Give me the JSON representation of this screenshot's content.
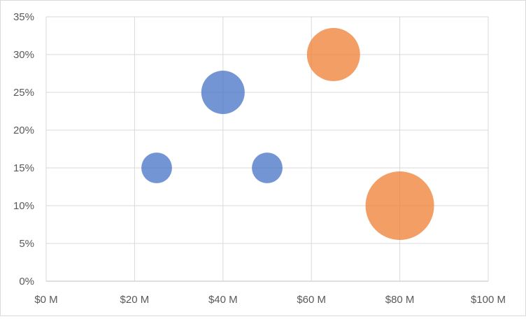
{
  "chart_data": {
    "type": "bubble",
    "title": "",
    "xlabel": "",
    "ylabel": "",
    "xlim": [
      0,
      100
    ],
    "ylim": [
      0,
      35
    ],
    "x_ticks": [
      0,
      20,
      40,
      60,
      80,
      100
    ],
    "x_tick_labels": [
      "$0 M",
      "$20 M",
      "$40 M",
      "$60 M",
      "$80 M",
      "$100 M"
    ],
    "y_ticks": [
      0,
      5,
      10,
      15,
      20,
      25,
      30,
      35
    ],
    "y_tick_labels": [
      "0%",
      "5%",
      "10%",
      "15%",
      "20%",
      "25%",
      "30%",
      "35%"
    ],
    "grid": "both",
    "legend": "none",
    "series": [
      {
        "color": "#4472c4",
        "points": [
          {
            "x": 25,
            "y": 15,
            "size": 1
          },
          {
            "x": 40,
            "y": 25,
            "size": 2
          },
          {
            "x": 50,
            "y": 15,
            "size": 1
          }
        ]
      },
      {
        "color": "#ed7d31",
        "points": [
          {
            "x": 65,
            "y": 30,
            "size": 3
          },
          {
            "x": 80,
            "y": 10,
            "size": 5
          }
        ]
      }
    ]
  }
}
